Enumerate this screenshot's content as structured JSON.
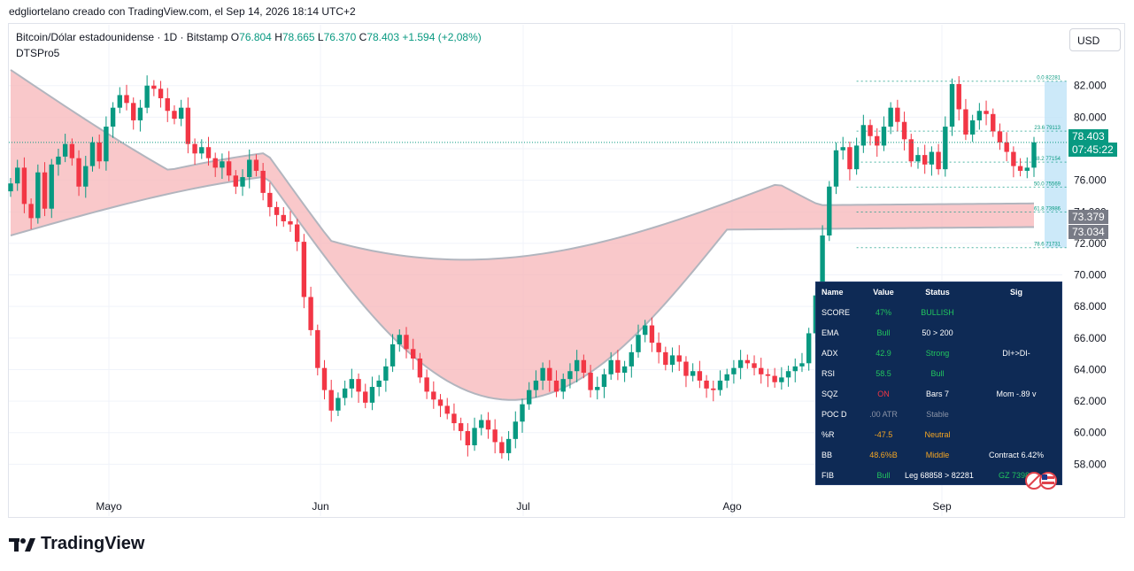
{
  "header": {
    "snapshot_text": "edgliortelano creado con TradingView.com, el Sep 14, 2026 18:14 UTC+2"
  },
  "legend": {
    "symbol": "Bitcoin/Dólar estadounidense · 1D · Bitstamp",
    "open_label": "O",
    "open": "76.804",
    "high_label": "H",
    "high": "78.665",
    "low_label": "L",
    "low": "76.370",
    "close_label": "C",
    "close": "78.403",
    "change": "+1.594 (+2,08%)",
    "indicator": "DTSPro5"
  },
  "currency_button": "USD",
  "price_tags": {
    "last_price": "78.403",
    "countdown": "07:45:22",
    "ma_upper": "73.379",
    "ma_lower": "73.034"
  },
  "colors": {
    "bull": "#089981",
    "bear": "#f23645",
    "cloud_bear": "#f7b5b8",
    "cloud_bull": "#c8f0dc",
    "ma_line": "#b2b5be",
    "table_bg": "#0e2a55",
    "fib_blue": "#bfe3f7"
  },
  "fib_labels": [
    "0.0 82281",
    "23.6 79113",
    "38.2 77154",
    "50.0 75569",
    "61.8 73986",
    "78.6 71731"
  ],
  "stats_table": {
    "headers": [
      "Name",
      "Value",
      "Status",
      "Sig"
    ],
    "rows": [
      {
        "name": "SCORE",
        "value": "47%",
        "status": "BULLISH",
        "sig": "",
        "vc": "#22c55e",
        "sc": "#22c55e",
        "gc": "#ffffff"
      },
      {
        "name": "EMA",
        "value": "Bull",
        "status": "50 > 200",
        "sig": "",
        "vc": "#22c55e",
        "sc": "#ffffff",
        "gc": "#ffffff"
      },
      {
        "name": "ADX",
        "value": "42.9",
        "status": "Strong",
        "sig": "DI+>DI-",
        "vc": "#22c55e",
        "sc": "#22c55e",
        "gc": "#ffffff"
      },
      {
        "name": "RSI",
        "value": "58.5",
        "status": "Bull",
        "sig": "",
        "vc": "#22c55e",
        "sc": "#22c55e",
        "gc": "#ffffff"
      },
      {
        "name": "SQZ",
        "value": "ON",
        "status": "Bars 7",
        "sig": "Mom -.89 v",
        "vc": "#f23645",
        "sc": "#ffffff",
        "gc": "#ffffff"
      },
      {
        "name": "POC D",
        "value": ".00 ATR",
        "status": "Stable",
        "sig": "",
        "vc": "#8a93a6",
        "sc": "#8a93a6",
        "gc": "#ffffff"
      },
      {
        "name": "%R",
        "value": "-47.5",
        "status": "Neutral",
        "sig": "",
        "vc": "#f5a623",
        "sc": "#f5a623",
        "gc": "#ffffff"
      },
      {
        "name": "BB",
        "value": "48.6%B",
        "status": "Middle",
        "sig": "Contract 6.42%",
        "vc": "#f5a623",
        "sc": "#f5a623",
        "gc": "#ffffff"
      },
      {
        "name": "FIB",
        "value": "Bull",
        "status": "Leg 68858 > 82281",
        "sig": "GZ 73986",
        "vc": "#22c55e",
        "sc": "#ffffff",
        "gc": "#22c55e"
      }
    ]
  },
  "chart_data": {
    "type": "candlestick",
    "title": "Bitcoin/Dólar estadounidense · 1D · Bitstamp",
    "x_tick_labels": [
      "Mayo",
      "Jun",
      "Jul",
      "Ago",
      "Sep"
    ],
    "y_tick_labels": [
      "58.000",
      "60.000",
      "62.000",
      "64.000",
      "66.000",
      "68.000",
      "70.000",
      "72.000",
      "74.000",
      "76.000",
      "78.000",
      "80.000",
      "82.000"
    ],
    "ylim": [
      56000,
      83500
    ],
    "grid": true,
    "closes": [
      75800,
      76800,
      74500,
      73600,
      76500,
      74200,
      77000,
      77500,
      78300,
      77400,
      75600,
      76900,
      78400,
      77200,
      79400,
      80600,
      81400,
      80900,
      79800,
      80600,
      82000,
      81800,
      81200,
      80400,
      79900,
      80600,
      78300,
      77700,
      78100,
      77400,
      76800,
      77200,
      76300,
      75600,
      76200,
      77300,
      76600,
      75200,
      74300,
      73800,
      73400,
      73200,
      72100,
      68600,
      66500,
      64100,
      62700,
      61400,
      62200,
      62800,
      63400,
      62600,
      61900,
      62900,
      63300,
      64200,
      65600,
      66200,
      65300,
      64700,
      63500,
      62600,
      62100,
      61700,
      61200,
      60600,
      60100,
      59200,
      60300,
      60800,
      60200,
      59400,
      58700,
      59600,
      60700,
      61800,
      62700,
      63300,
      64100,
      63300,
      62600,
      63400,
      63900,
      64600,
      63800,
      62700,
      62900,
      63700,
      64600,
      63800,
      64200,
      65100,
      66200,
      66800,
      65700,
      65100,
      64300,
      64900,
      64500,
      63600,
      63900,
      63300,
      62800,
      62700,
      63300,
      63700,
      64100,
      64600,
      64400,
      64100,
      63700,
      63600,
      63200,
      63500,
      63900,
      64200,
      64400,
      66300,
      68700,
      72500,
      75600,
      77900,
      78100,
      76700,
      78200,
      79500,
      78800,
      78200,
      79400,
      80600,
      79700,
      78600,
      77200,
      77600,
      77000,
      77800,
      76700,
      79400,
      82100,
      80500,
      78900,
      79800,
      80400,
      80200,
      79100,
      78400,
      77800,
      76900,
      76600,
      76800,
      78403
    ],
    "ma_upper": {
      "start": 83000,
      "end": 73379
    },
    "ma_lower": {
      "start": 72500,
      "end": 73034
    },
    "fib_levels": [
      82281,
      79113,
      77154,
      75569,
      73986,
      71731
    ],
    "last_price": 78403
  }
}
